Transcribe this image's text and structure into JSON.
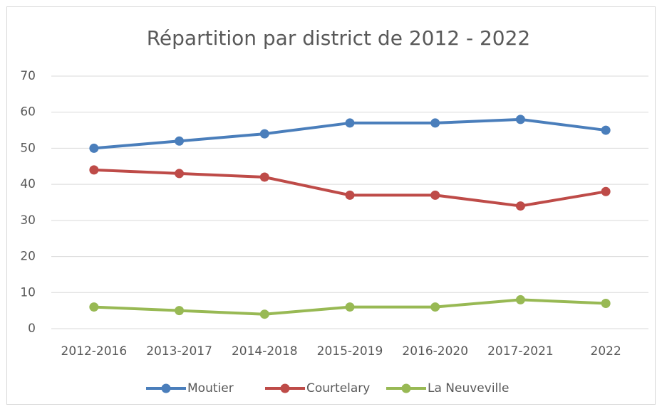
{
  "chart_data": {
    "type": "line",
    "title": "Répartition par district de 2012 - 2022",
    "categories": [
      "2012-2016",
      "2013-2017",
      "2014-2018",
      "2015-2019",
      "2016-2020",
      "2017-2021",
      "2022"
    ],
    "series": [
      {
        "name": "Moutier",
        "color": "#4a7ebb",
        "values": [
          50,
          52,
          54,
          57,
          57,
          58,
          55
        ]
      },
      {
        "name": "Courtelary",
        "color": "#be4b48",
        "values": [
          44,
          43,
          42,
          37,
          37,
          34,
          38
        ]
      },
      {
        "name": "La Neuveville",
        "color": "#98b954",
        "values": [
          6,
          5,
          4,
          6,
          6,
          8,
          7
        ]
      }
    ],
    "ylim": [
      0,
      70
    ],
    "yticks": [
      0,
      10,
      20,
      30,
      40,
      50,
      60,
      70
    ],
    "grid": true,
    "legend": "bottom"
  }
}
